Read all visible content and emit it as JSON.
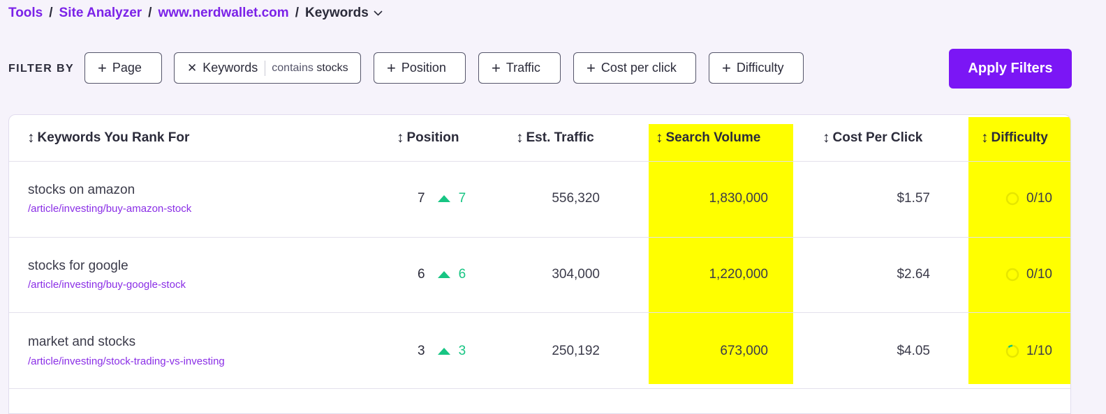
{
  "breadcrumb": {
    "tools": "Tools",
    "site_analyzer": "Site Analyzer",
    "domain": "www.nerdwallet.com",
    "current": "Keywords",
    "separator": "/"
  },
  "filters": {
    "label": "FILTER BY",
    "chips": {
      "page": "Page",
      "keywords": "Keywords",
      "keywords_condition": "contains",
      "keywords_value": "stocks",
      "position": "Position",
      "traffic": "Traffic",
      "cost_per_click": "Cost per click",
      "difficulty": "Difficulty"
    },
    "apply_label": "Apply Filters"
  },
  "table": {
    "columns": {
      "keywords": "Keywords You Rank For",
      "position": "Position",
      "traffic": "Est. Traffic",
      "search_volume": "Search Volume",
      "cpc": "Cost Per Click",
      "difficulty": "Difficulty"
    },
    "sort_glyph": "↕",
    "rows": [
      {
        "keyword": "stocks on amazon",
        "url": "/article/investing/buy-amazon-stock",
        "position": "7",
        "change": "7",
        "traffic": "556,320",
        "volume": "1,830,000",
        "cpc": "$1.57",
        "difficulty": "0/10",
        "difficulty_value": 0
      },
      {
        "keyword": "stocks for google",
        "url": "/article/investing/buy-google-stock",
        "position": "6",
        "change": "6",
        "traffic": "304,000",
        "volume": "1,220,000",
        "cpc": "$2.64",
        "difficulty": "0/10",
        "difficulty_value": 0
      },
      {
        "keyword": "market and stocks",
        "url": "/article/investing/stock-trading-vs-investing",
        "position": "3",
        "change": "3",
        "traffic": "250,192",
        "volume": "673,000",
        "cpc": "$4.05",
        "difficulty": "1/10",
        "difficulty_value": 1
      }
    ]
  },
  "colors": {
    "accent": "#7b16f5",
    "link": "#7b22e8",
    "positive": "#17c583",
    "highlight": "#ffff00"
  }
}
